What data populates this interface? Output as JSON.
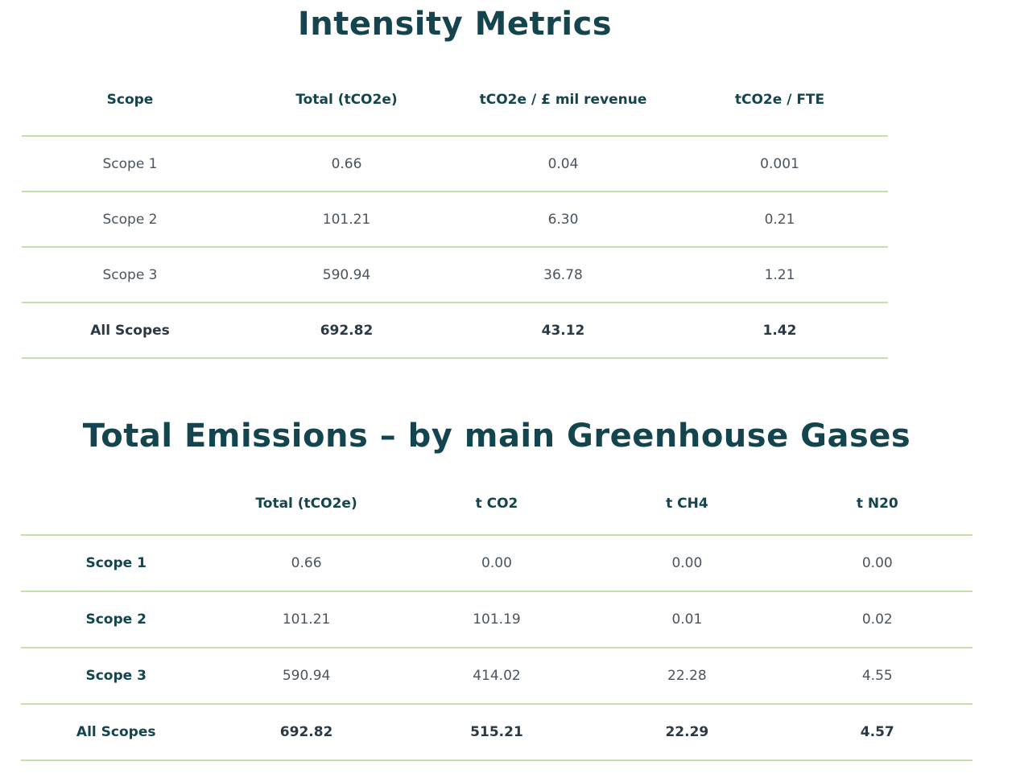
{
  "colors": {
    "heading": "#14454e",
    "value_text": "#4a545e",
    "emphasis_text": "#2b3a42",
    "divider": "#c9dcab",
    "background": "#ffffff"
  },
  "intensity_metrics": {
    "title": "Intensity Metrics",
    "columns": [
      "Scope",
      "Total (tCO2e)",
      "tCO2e / £ mil revenue",
      "tCO2e / FTE"
    ],
    "bold_row_labels": false,
    "rows": [
      {
        "label": "Scope 1",
        "values": [
          "0.66",
          "0.04",
          "0.001"
        ],
        "emphasis": false
      },
      {
        "label": "Scope 2",
        "values": [
          "101.21",
          "6.30",
          "0.21"
        ],
        "emphasis": false
      },
      {
        "label": "Scope 3",
        "values": [
          "590.94",
          "36.78",
          "1.21"
        ],
        "emphasis": false
      },
      {
        "label": "All Scopes",
        "values": [
          "692.82",
          "43.12",
          "1.42"
        ],
        "emphasis": true
      }
    ]
  },
  "greenhouse_gas_emissions": {
    "title": "Total Emissions – by main Greenhouse Gases",
    "columns": [
      "",
      "Total (tCO2e)",
      "t CO2",
      "t CH4",
      "t N20"
    ],
    "bold_row_labels": true,
    "rows": [
      {
        "label": "Scope 1",
        "values": [
          "0.66",
          "0.00",
          "0.00",
          "0.00"
        ],
        "emphasis": false
      },
      {
        "label": "Scope 2",
        "values": [
          "101.21",
          "101.19",
          "0.01",
          "0.02"
        ],
        "emphasis": false
      },
      {
        "label": "Scope 3",
        "values": [
          "590.94",
          "414.02",
          "22.28",
          "4.55"
        ],
        "emphasis": false
      },
      {
        "label": "All Scopes",
        "values": [
          "692.82",
          "515.21",
          "22.29",
          "4.57"
        ],
        "emphasis": true
      }
    ]
  }
}
